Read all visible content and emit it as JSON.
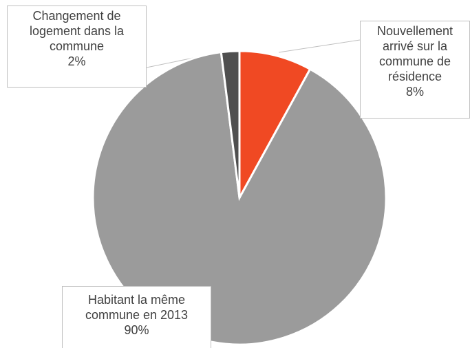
{
  "chart_data": {
    "type": "pie",
    "categories": [
      "Nouvellement arrivé sur la commune de résidence",
      "Habitant la même commune en 2013",
      "Changement de logement dans la commune"
    ],
    "values": [
      8,
      90,
      2
    ],
    "value_labels": [
      "8%",
      "90%",
      "2%"
    ],
    "colors": [
      "#f04923",
      "#9b9b9b",
      "#4f4f4f"
    ]
  }
}
